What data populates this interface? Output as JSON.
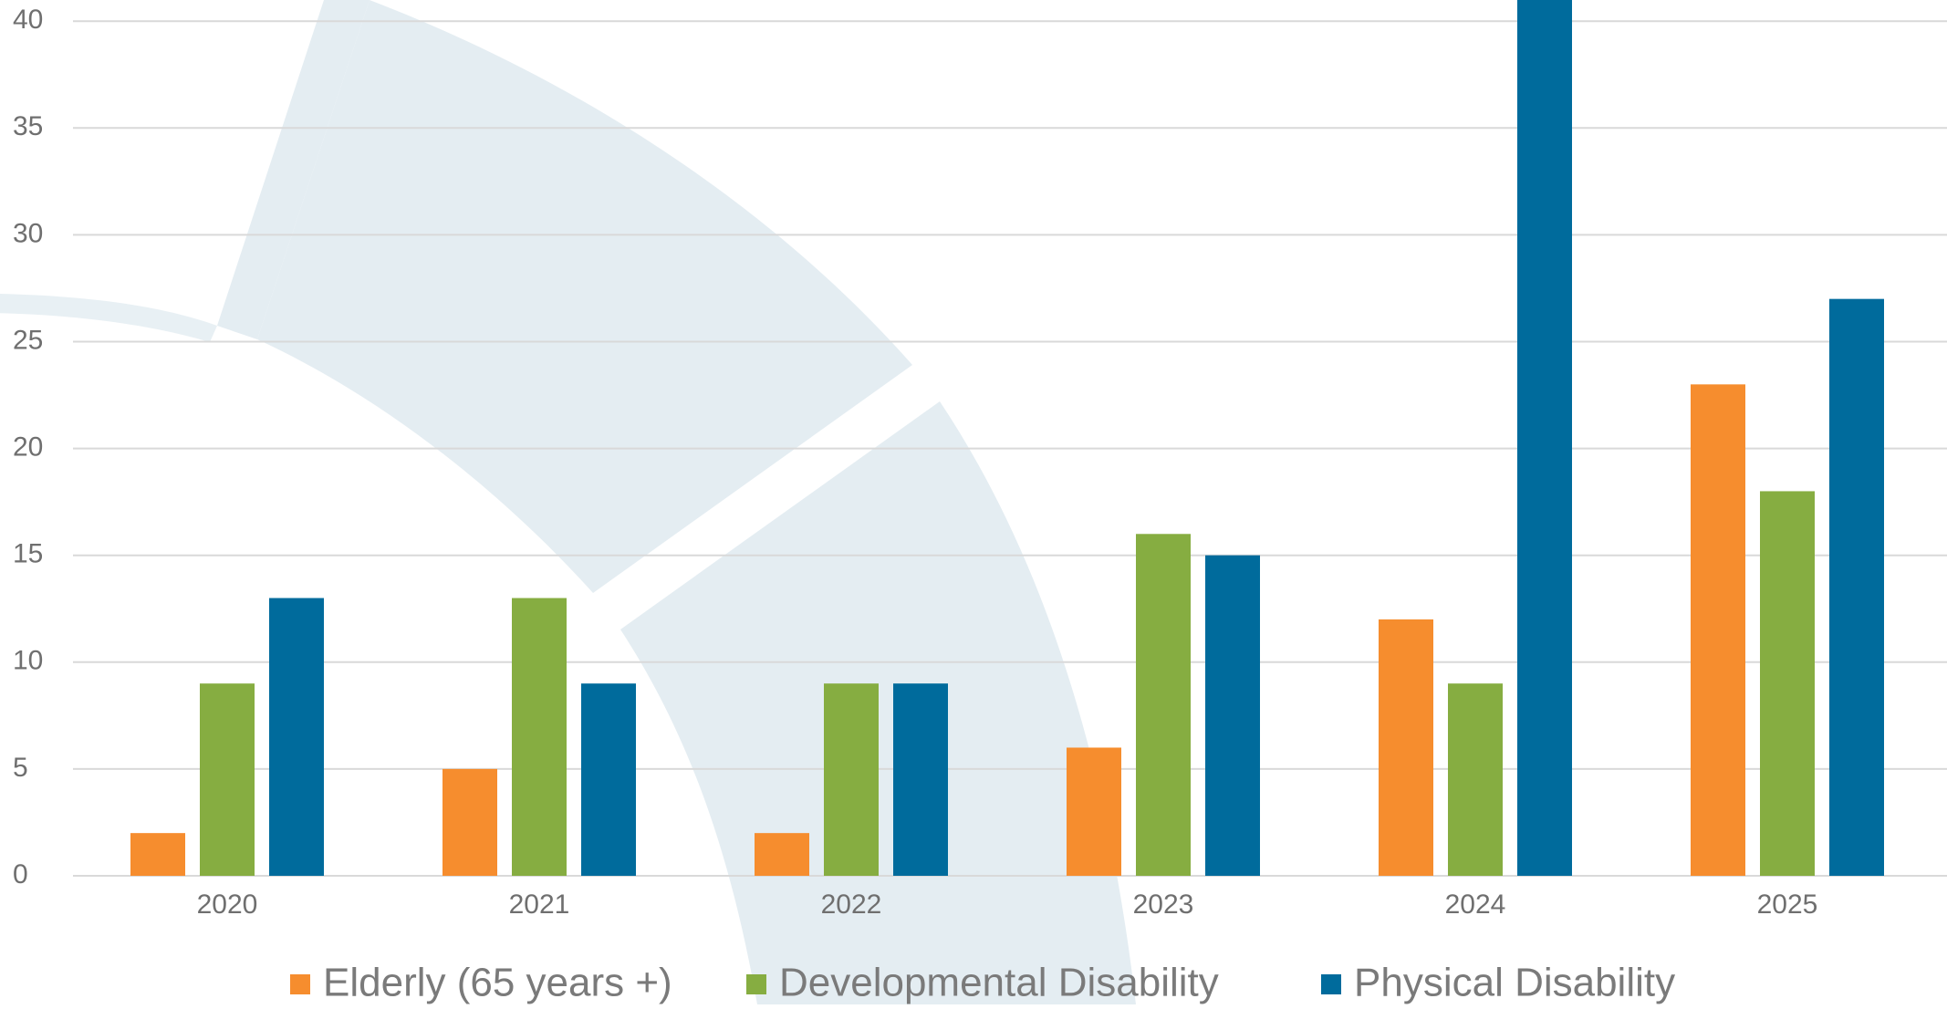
{
  "chart_data": {
    "type": "bar",
    "title": "",
    "xlabel": "",
    "ylabel": "",
    "categories": [
      "2020",
      "2021",
      "2022",
      "2023",
      "2024",
      "2025"
    ],
    "series": [
      {
        "name": "Elderly (65 years +)",
        "color": "#f68d2e",
        "values": [
          2,
          5,
          2,
          6,
          12,
          23
        ]
      },
      {
        "name": "Developmental Disability",
        "color": "#86ad41",
        "values": [
          9,
          13,
          9,
          16,
          9,
          18
        ]
      },
      {
        "name": "Physical Disability",
        "color": "#006b9c",
        "values": [
          13,
          9,
          9,
          15,
          41,
          27
        ]
      }
    ],
    "ylim": [
      0,
      41
    ],
    "yticks": [
      0,
      5,
      10,
      15,
      20,
      25,
      30,
      35,
      40
    ],
    "grid": true,
    "legend_position": "bottom",
    "gridline_color": "#d9d9d9",
    "tick_label_color": "#6f6f6f",
    "watermark_color": "#e4edf2"
  }
}
